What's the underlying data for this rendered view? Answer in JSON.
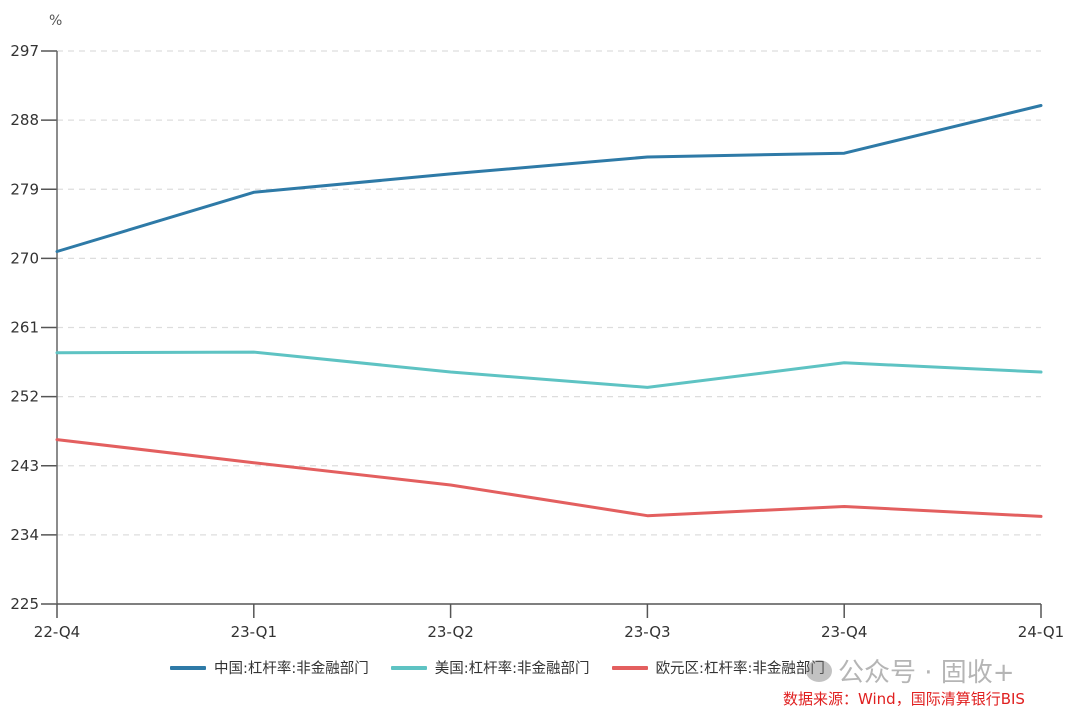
{
  "chart_data": {
    "type": "line",
    "title": "",
    "xlabel": "",
    "ylabel": "%",
    "ylim": [
      225,
      297
    ],
    "yticks": [
      225,
      234,
      243,
      252,
      261,
      270,
      279,
      288,
      297
    ],
    "grid": true,
    "legend_position": "bottom",
    "categories": [
      "22-Q4",
      "23-Q1",
      "23-Q2",
      "23-Q3",
      "23-Q4",
      "24-Q1"
    ],
    "series": [
      {
        "name": "中国:杠杆率:非金融部门",
        "color": "#2e7aa7",
        "values": [
          270.9,
          278.6,
          281.0,
          283.2,
          283.7,
          289.9
        ]
      },
      {
        "name": "美国:杠杆率:非金融部门",
        "color": "#5ec3c3",
        "values": [
          257.7,
          257.8,
          255.2,
          253.2,
          256.4,
          255.2
        ]
      },
      {
        "name": "欧元区:杠杆率:非金融部门",
        "color": "#e35f5f",
        "values": [
          246.4,
          243.4,
          240.5,
          236.5,
          237.7,
          236.4
        ]
      }
    ]
  },
  "axis": {
    "unit": "%"
  },
  "legend": [
    {
      "label": "中国:杠杆率:非金融部门",
      "color": "#2e7aa7"
    },
    {
      "label": "美国:杠杆率:非金融部门",
      "color": "#5ec3c3"
    },
    {
      "label": "欧元区:杠杆率:非金融部门",
      "color": "#e35f5f"
    }
  ],
  "watermark": {
    "text": "公众号 · 固收+"
  },
  "source": {
    "text": "数据来源：Wind，国际清算银行BIS"
  }
}
